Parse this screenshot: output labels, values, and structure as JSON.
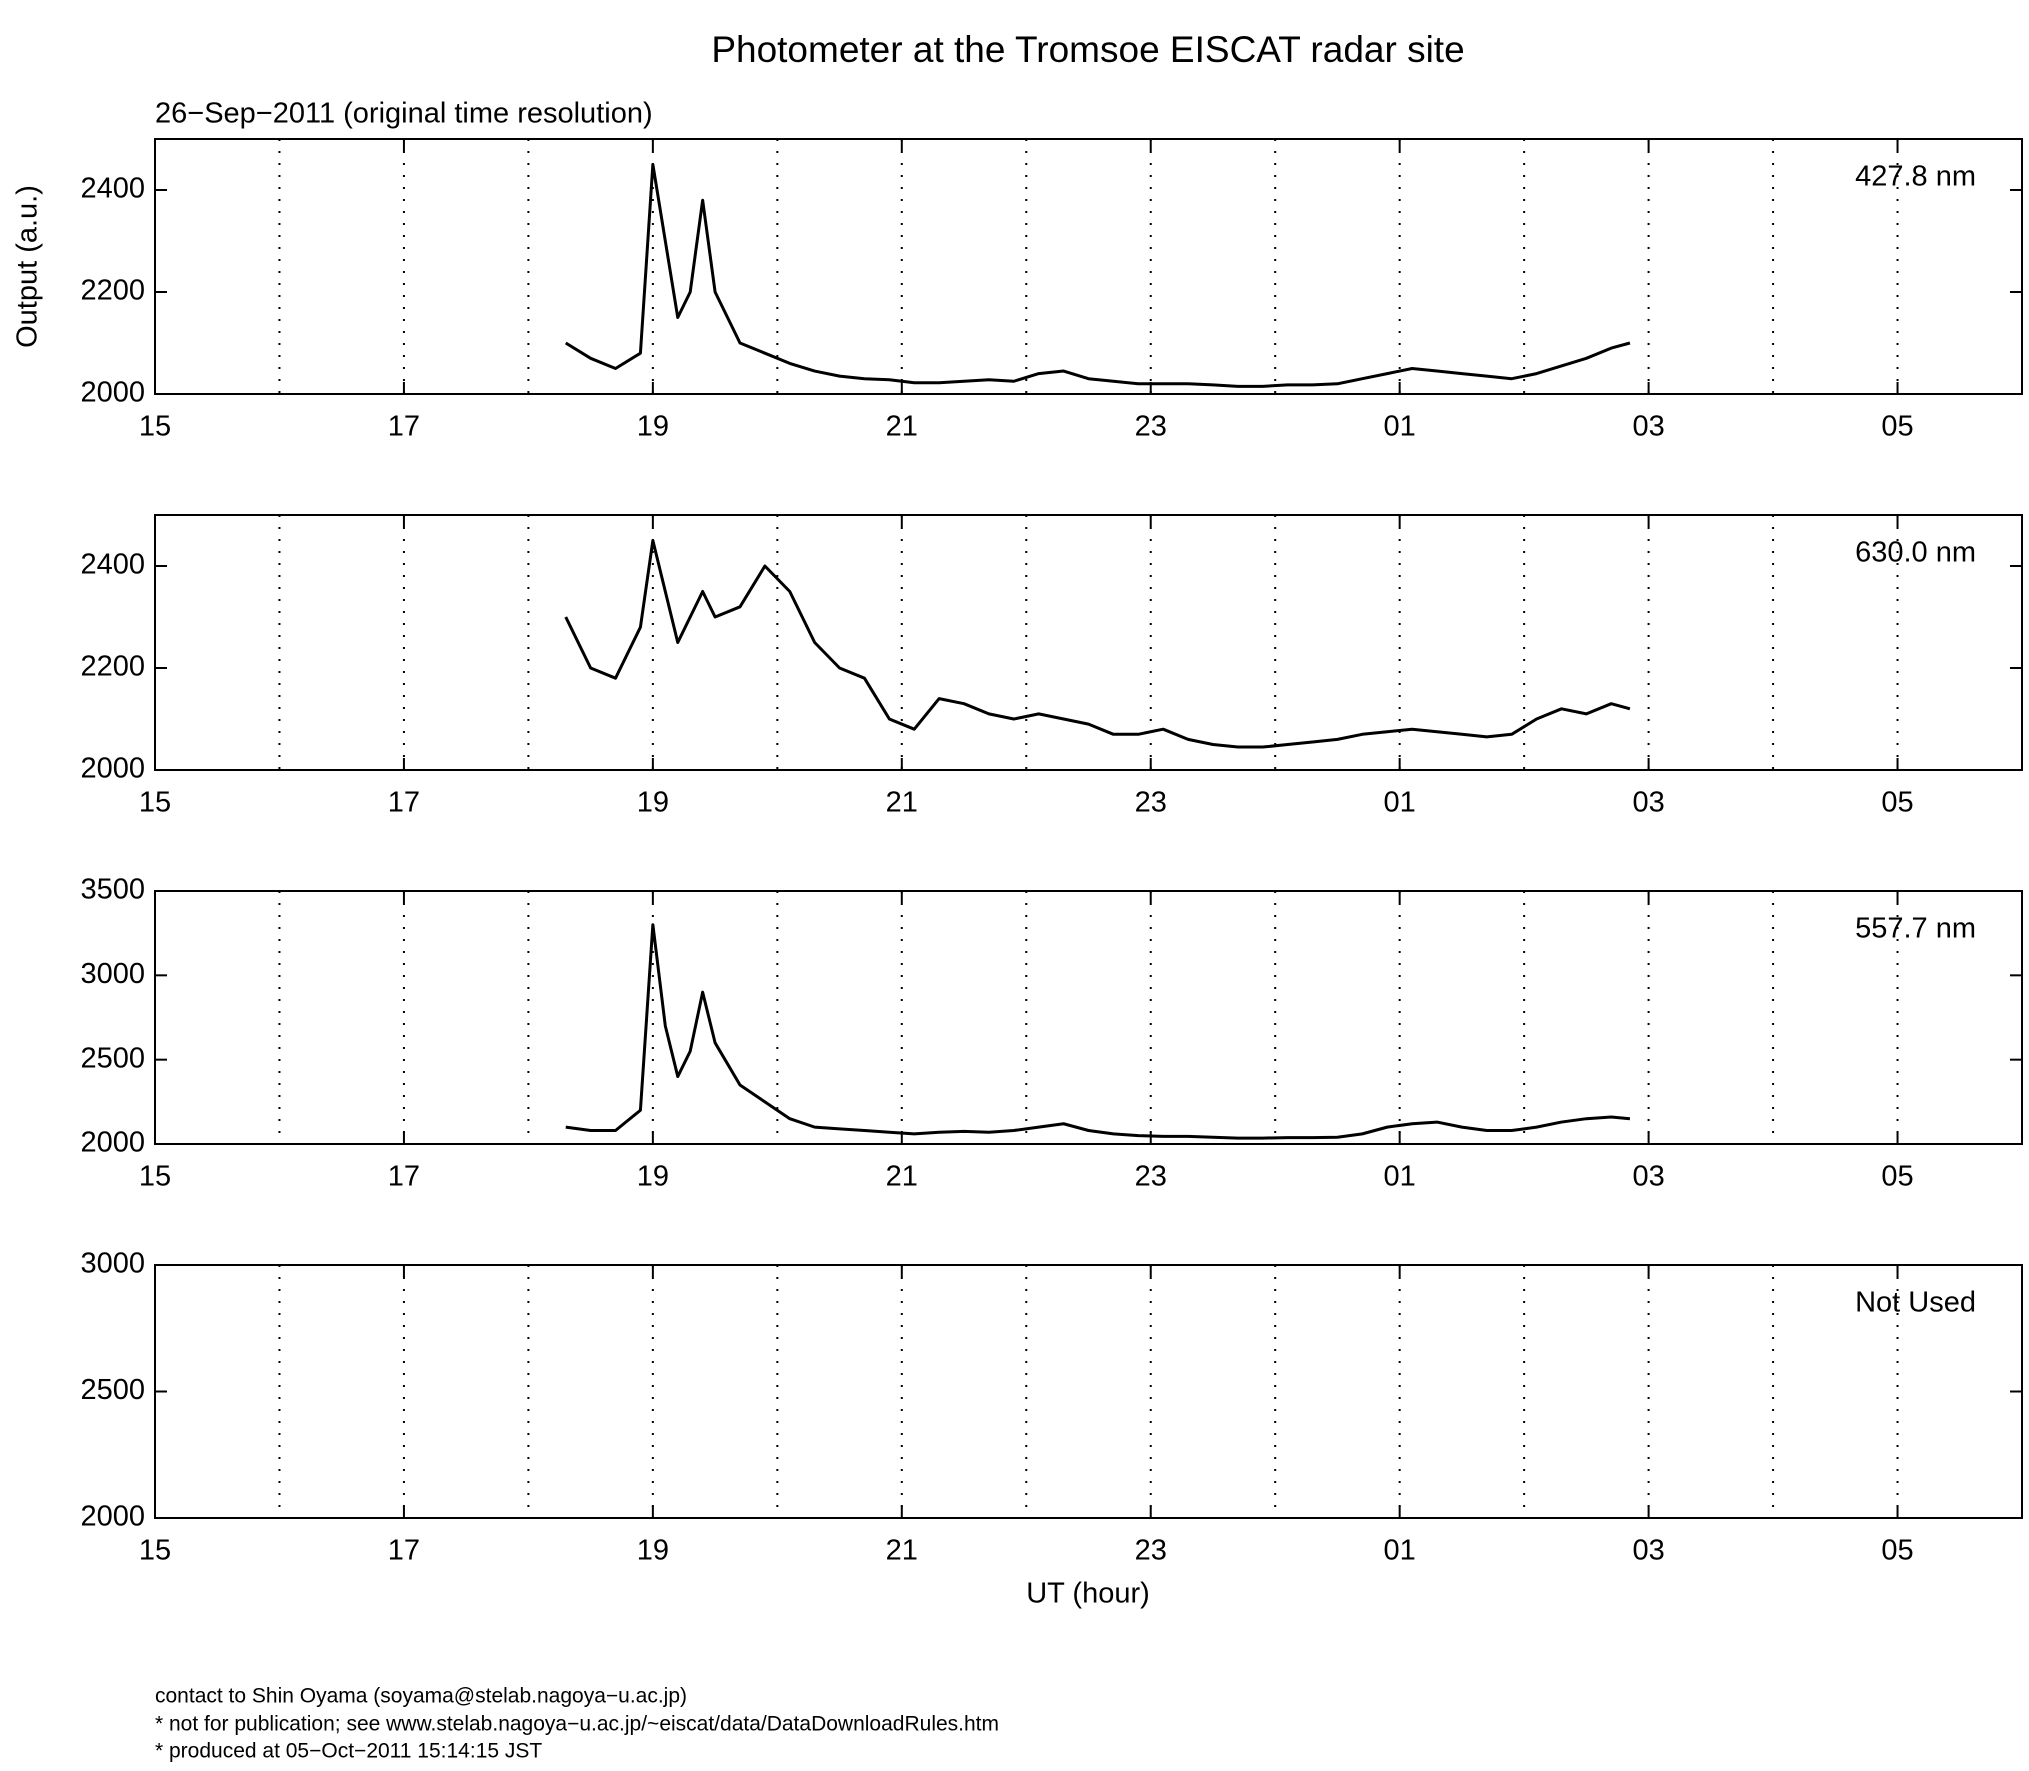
{
  "title": "Photometer at the Tromsoe EISCAT radar site",
  "subtitle": "26−Sep−2011 (original time resolution)",
  "x_label": "UT (hour)",
  "footer": [
    "contact to Shin Oyama (soyama@stelab.nagoya−u.ac.jp)",
    "* not for publication; see www.stelab.nagoya−u.ac.jp/~eiscat/data/DataDownloadRules.htm",
    "* produced at 05−Oct−2011 15:14:15 JST"
  ],
  "chart_data": [
    {
      "type": "line",
      "annotation": "427.8 nm",
      "ylabel": "Output (a.u.)",
      "x": [
        18.3,
        18.5,
        18.7,
        18.9,
        19.0,
        19.1,
        19.2,
        19.3,
        19.4,
        19.5,
        19.7,
        19.9,
        20.1,
        20.3,
        20.5,
        20.7,
        20.9,
        21.1,
        21.3,
        21.5,
        21.7,
        21.9,
        22.1,
        22.3,
        22.5,
        22.7,
        22.9,
        23.1,
        23.3,
        23.5,
        23.7,
        23.9,
        24.1,
        24.3,
        24.5,
        24.7,
        24.9,
        25.1,
        25.3,
        25.5,
        25.7,
        25.9,
        26.1,
        26.3,
        26.5,
        26.7,
        26.85
      ],
      "series": [
        {
          "color": "#000000",
          "values": [
            2100,
            2070,
            2050,
            2080,
            2450,
            2300,
            2150,
            2200,
            2380,
            2200,
            2100,
            2080,
            2060,
            2045,
            2035,
            2030,
            2028,
            2022,
            2022,
            2025,
            2028,
            2025,
            2040,
            2045,
            2030,
            2025,
            2020,
            2020,
            2020,
            2018,
            2015,
            2015,
            2018,
            2018,
            2020,
            2030,
            2040,
            2050,
            2045,
            2040,
            2035,
            2030,
            2040,
            2055,
            2070,
            2090,
            2100
          ]
        }
      ],
      "xlim": [
        15,
        30
      ],
      "xticks": [
        15,
        17,
        19,
        21,
        23,
        {
          "value": 25,
          "label": "01"
        },
        {
          "value": 27,
          "label": "03"
        },
        {
          "value": 29,
          "label": "05"
        }
      ],
      "xminorticks": [
        16,
        18,
        20,
        22,
        24,
        26,
        28
      ],
      "ylim": [
        2000,
        2500
      ],
      "yticks": [
        2000,
        2200,
        2400
      ],
      "grid": true
    },
    {
      "type": "line",
      "annotation": "630.0 nm",
      "x": [
        18.3,
        18.5,
        18.7,
        18.9,
        19.0,
        19.1,
        19.2,
        19.3,
        19.4,
        19.5,
        19.7,
        19.9,
        20.1,
        20.3,
        20.5,
        20.7,
        20.9,
        21.1,
        21.3,
        21.5,
        21.7,
        21.9,
        22.1,
        22.3,
        22.5,
        22.7,
        22.9,
        23.1,
        23.3,
        23.5,
        23.7,
        23.9,
        24.1,
        24.3,
        24.5,
        24.7,
        24.9,
        25.1,
        25.3,
        25.5,
        25.7,
        25.9,
        26.1,
        26.3,
        26.5,
        26.7,
        26.85
      ],
      "series": [
        {
          "color": "#000000",
          "values": [
            2300,
            2200,
            2180,
            2280,
            2450,
            2350,
            2250,
            2300,
            2350,
            2300,
            2320,
            2400,
            2350,
            2250,
            2200,
            2180,
            2100,
            2080,
            2140,
            2130,
            2110,
            2100,
            2110,
            2100,
            2090,
            2070,
            2070,
            2080,
            2060,
            2050,
            2045,
            2045,
            2050,
            2055,
            2060,
            2070,
            2075,
            2080,
            2075,
            2070,
            2065,
            2070,
            2100,
            2120,
            2110,
            2130,
            2120
          ]
        }
      ],
      "xlim": [
        15,
        30
      ],
      "xticks": [
        15,
        17,
        19,
        21,
        23,
        {
          "value": 25,
          "label": "01"
        },
        {
          "value": 27,
          "label": "03"
        },
        {
          "value": 29,
          "label": "05"
        }
      ],
      "xminorticks": [
        16,
        18,
        20,
        22,
        24,
        26,
        28
      ],
      "ylim": [
        2000,
        2500
      ],
      "yticks": [
        2000,
        2200,
        2400
      ],
      "grid": true
    },
    {
      "type": "line",
      "annotation": "557.7 nm",
      "x": [
        18.3,
        18.5,
        18.7,
        18.9,
        19.0,
        19.1,
        19.2,
        19.3,
        19.4,
        19.5,
        19.7,
        19.9,
        20.1,
        20.3,
        20.5,
        20.7,
        20.9,
        21.1,
        21.3,
        21.5,
        21.7,
        21.9,
        22.1,
        22.3,
        22.5,
        22.7,
        22.9,
        23.1,
        23.3,
        23.5,
        23.7,
        23.9,
        24.1,
        24.3,
        24.5,
        24.7,
        24.9,
        25.1,
        25.3,
        25.5,
        25.7,
        25.9,
        26.1,
        26.3,
        26.5,
        26.7,
        26.85
      ],
      "series": [
        {
          "color": "#000000",
          "values": [
            2100,
            2080,
            2080,
            2200,
            3300,
            2700,
            2400,
            2550,
            2900,
            2600,
            2350,
            2250,
            2150,
            2100,
            2090,
            2080,
            2070,
            2060,
            2070,
            2075,
            2070,
            2080,
            2100,
            2120,
            2080,
            2060,
            2050,
            2045,
            2045,
            2040,
            2035,
            2035,
            2038,
            2038,
            2040,
            2060,
            2100,
            2120,
            2130,
            2100,
            2080,
            2080,
            2100,
            2130,
            2150,
            2160,
            2150
          ]
        }
      ],
      "xlim": [
        15,
        30
      ],
      "xticks": [
        15,
        17,
        19,
        21,
        23,
        {
          "value": 25,
          "label": "01"
        },
        {
          "value": 27,
          "label": "03"
        },
        {
          "value": 29,
          "label": "05"
        }
      ],
      "xminorticks": [
        16,
        18,
        20,
        22,
        24,
        26,
        28
      ],
      "ylim": [
        2000,
        3500
      ],
      "yticks": [
        2000,
        2500,
        3000,
        3500
      ],
      "grid": true
    },
    {
      "type": "line",
      "annotation": "Not Used",
      "xlim": [
        15,
        30
      ],
      "xticks": [
        15,
        17,
        19,
        21,
        23,
        {
          "value": 25,
          "label": "01"
        },
        {
          "value": 27,
          "label": "03"
        },
        {
          "value": 29,
          "label": "05"
        }
      ],
      "xminorticks": [
        16,
        18,
        20,
        22,
        24,
        26,
        28
      ],
      "ylim": [
        2000,
        3000
      ],
      "yticks": [
        2000,
        2500,
        3000
      ],
      "grid": true
    }
  ]
}
